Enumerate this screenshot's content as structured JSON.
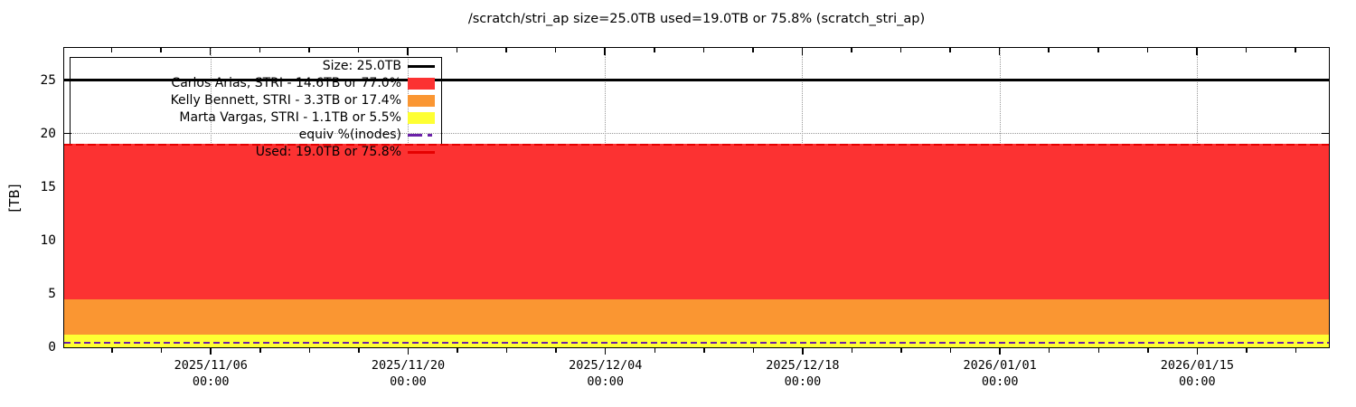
{
  "title": "/scratch/stri_ap size=25.0TB used=19.0TB or 75.8% (scratch_stri_ap)",
  "chart_data": {
    "type": "area",
    "title": "/scratch/stri_ap size=25.0TB used=19.0TB or 75.8% (scratch_stri_ap)",
    "ylabel": "[TB]",
    "ylim": [
      0,
      28
    ],
    "yticks": [
      0,
      5,
      10,
      15,
      20,
      25
    ],
    "grid": true,
    "legend_position": "top-left",
    "x_axis": {
      "tick_labels": [
        {
          "date": "2025/11/06",
          "time": "00:00"
        },
        {
          "date": "2025/11/20",
          "time": "00:00"
        },
        {
          "date": "2025/12/04",
          "time": "00:00"
        },
        {
          "date": "2025/12/18",
          "time": "00:00"
        },
        {
          "date": "2026/01/01",
          "time": "00:00"
        },
        {
          "date": "2026/01/15",
          "time": "00:00"
        }
      ],
      "first_major_frac": 0.1157,
      "major_step_frac": 0.1561,
      "minor_divisions": 4
    },
    "series": [
      {
        "name": "Marta Vargas, STRI",
        "label": "Marta Vargas, STRI - 1.1TB or 5.5%",
        "value_tb": 1.1,
        "pct": 5.5,
        "color": "#feff33"
      },
      {
        "name": "Kelly Bennett, STRI",
        "label": "Kelly Bennett, STRI - 3.3TB or 17.4%",
        "value_tb": 3.3,
        "pct": 17.4,
        "color": "#fa9632"
      },
      {
        "name": "Carlos Arias, STRI",
        "label": "Carlos Arias, STRI - 14.6TB or 77.0%",
        "value_tb": 14.6,
        "pct": 77.0,
        "color": "#fc3232"
      }
    ],
    "size_line": {
      "label": "Size: 25.0TB",
      "value_tb": 25.0,
      "color": "#000000"
    },
    "used_line": {
      "label": "Used: 19.0TB or 75.8%",
      "value_tb": 19.0,
      "pct": 75.8,
      "color": "#e60000"
    },
    "inodes_line": {
      "label": "equiv %(inodes)",
      "value_tb_equiv": 0.35,
      "color": "#6b21a8"
    }
  },
  "legend": {
    "entries": [
      {
        "label": "Size: 25.0TB",
        "sample": "line",
        "color": "#000000"
      },
      {
        "label": "Carlos Arias, STRI - 14.6TB or 77.0%",
        "sample": "box",
        "color": "#fc3232"
      },
      {
        "label": "Kelly Bennett, STRI - 3.3TB or 17.4%",
        "sample": "box",
        "color": "#fa9632"
      },
      {
        "label": "Marta Vargas, STRI - 1.1TB or 5.5%",
        "sample": "box",
        "color": "#feff33"
      },
      {
        "label": "equiv %(inodes)",
        "sample": "dashdot",
        "color": "#6b21a8"
      },
      {
        "label": "Used: 19.0TB or 75.8%",
        "sample": "line",
        "color": "#e60000"
      }
    ]
  }
}
